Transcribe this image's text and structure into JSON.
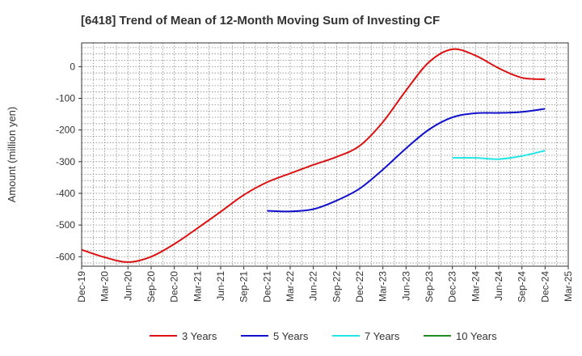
{
  "chart_data": {
    "type": "line",
    "title": "[6418]  Trend of Mean of 12-Month Moving Sum of Investing CF",
    "xlabel": "",
    "ylabel": "Amount (million yen)",
    "ylim": [
      -630,
      75
    ],
    "yticks": [
      0,
      -100,
      -200,
      -300,
      -400,
      -500,
      -600
    ],
    "categories": [
      "Dec-19",
      "Mar-20",
      "Jun-20",
      "Sep-20",
      "Dec-20",
      "Mar-21",
      "Jun-21",
      "Sep-21",
      "Dec-21",
      "Mar-22",
      "Jun-22",
      "Sep-22",
      "Dec-22",
      "Mar-23",
      "Jun-23",
      "Sep-23",
      "Dec-23",
      "Mar-24",
      "Jun-24",
      "Sep-24",
      "Dec-24",
      "Mar-25"
    ],
    "grid": true,
    "legend_position": "bottom",
    "series": [
      {
        "name": "3 Years",
        "color": "#dd1111",
        "values": [
          -578,
          -602,
          -617,
          -600,
          -560,
          -510,
          -458,
          -405,
          -365,
          -337,
          -310,
          -285,
          -250,
          -175,
          -75,
          15,
          55,
          35,
          -5,
          -35,
          -40,
          null
        ]
      },
      {
        "name": "5 Years",
        "color": "#1111cc",
        "values": [
          null,
          null,
          null,
          null,
          null,
          null,
          null,
          null,
          -455,
          -457,
          -450,
          -423,
          -385,
          -325,
          -258,
          -198,
          -160,
          -147,
          -146,
          -143,
          -133,
          null
        ]
      },
      {
        "name": "7 Years",
        "color": "#22e5e5",
        "values": [
          null,
          null,
          null,
          null,
          null,
          null,
          null,
          null,
          null,
          null,
          null,
          null,
          null,
          null,
          null,
          null,
          -288,
          -288,
          -292,
          -282,
          -265,
          null
        ]
      },
      {
        "name": "10 Years",
        "color": "#228b22",
        "values": [
          null,
          null,
          null,
          null,
          null,
          null,
          null,
          null,
          null,
          null,
          null,
          null,
          null,
          null,
          null,
          null,
          null,
          null,
          null,
          null,
          null,
          null
        ]
      }
    ]
  }
}
